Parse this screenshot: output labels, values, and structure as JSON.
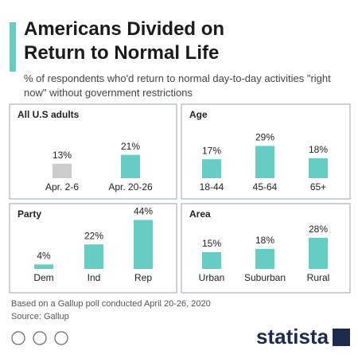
{
  "header": {
    "title": "Americans Divided on Return to Normal Life",
    "subtitle": "% of respondents who'd return to normal day-to-day activities \"right now\" without government restrictions"
  },
  "chart_data": [
    {
      "type": "bar",
      "title": "All U.S adults",
      "categories": [
        "Apr. 2-6",
        "Apr. 20-26"
      ],
      "values": [
        13,
        21
      ],
      "value_labels": [
        "13%",
        "21%"
      ],
      "colors": [
        "#cccccc",
        "#66cdc4"
      ]
    },
    {
      "type": "bar",
      "title": "Age",
      "categories": [
        "18-44",
        "45-64",
        "65+"
      ],
      "values": [
        17,
        29,
        18
      ],
      "value_labels": [
        "17%",
        "29%",
        "18%"
      ],
      "colors": [
        "#66cdc4",
        "#66cdc4",
        "#66cdc4"
      ]
    },
    {
      "type": "bar",
      "title": "Party",
      "categories": [
        "Dem",
        "Ind",
        "Rep"
      ],
      "values": [
        4,
        22,
        44
      ],
      "value_labels": [
        "4%",
        "22%",
        "44%"
      ],
      "colors": [
        "#66cdc4",
        "#66cdc4",
        "#66cdc4"
      ]
    },
    {
      "type": "bar",
      "title": "Area",
      "categories": [
        "Urban",
        "Suburban",
        "Rural"
      ],
      "values": [
        15,
        18,
        28
      ],
      "value_labels": [
        "15%",
        "18%",
        "28%"
      ],
      "colors": [
        "#66cdc4",
        "#66cdc4",
        "#66cdc4"
      ]
    }
  ],
  "footer": {
    "note": "Based on a Gallup poll conducted April 20-26, 2020",
    "source": "Source: Gallup",
    "brand": "statista"
  }
}
